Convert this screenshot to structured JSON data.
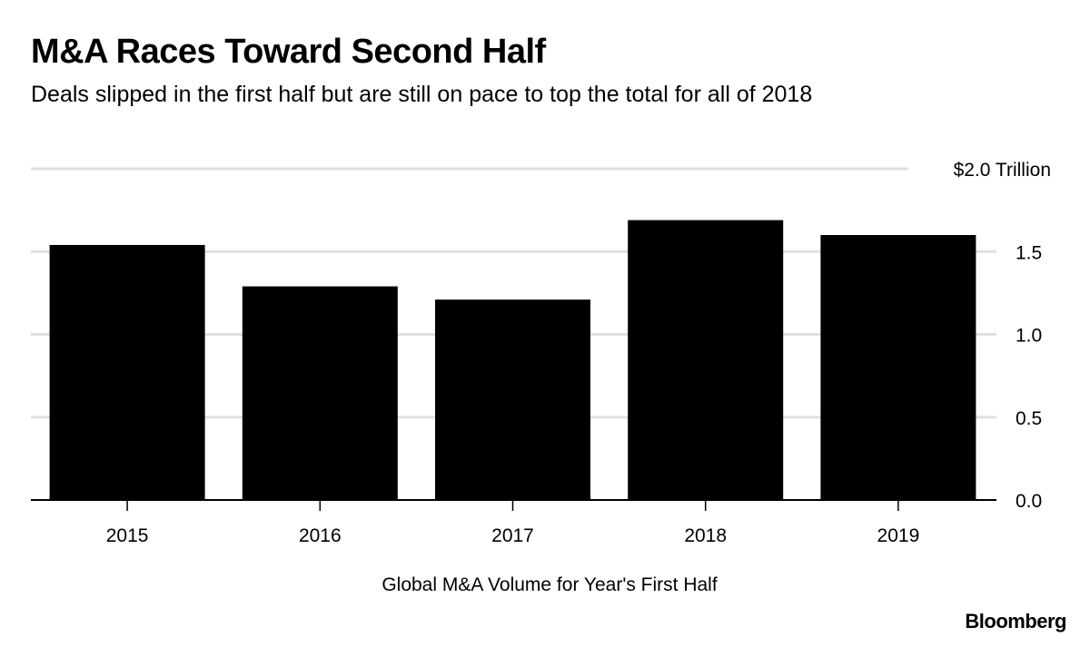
{
  "chart_data": {
    "type": "bar",
    "title": "M&A Races Toward Second Half",
    "subtitle": "Deals slipped in the first half but are still on pace to top the total for all of 2018",
    "categories": [
      "2015",
      "2016",
      "2017",
      "2018",
      "2019"
    ],
    "values": [
      1.54,
      1.29,
      1.21,
      1.69,
      1.6
    ],
    "xlabel": "Global M&A Volume for Year's First Half",
    "ylabel": "",
    "ylim": [
      0,
      2.0
    ],
    "yticks": [
      {
        "value": 0.0,
        "label": "0.0"
      },
      {
        "value": 0.5,
        "label": "0.5"
      },
      {
        "value": 1.0,
        "label": "1.0"
      },
      {
        "value": 1.5,
        "label": "1.5"
      },
      {
        "value": 2.0,
        "label": "$2.0 Trillion"
      }
    ],
    "grid": true,
    "bar_color": "#000000",
    "grid_color": "#e0e0e0",
    "source": "Bloomberg"
  }
}
